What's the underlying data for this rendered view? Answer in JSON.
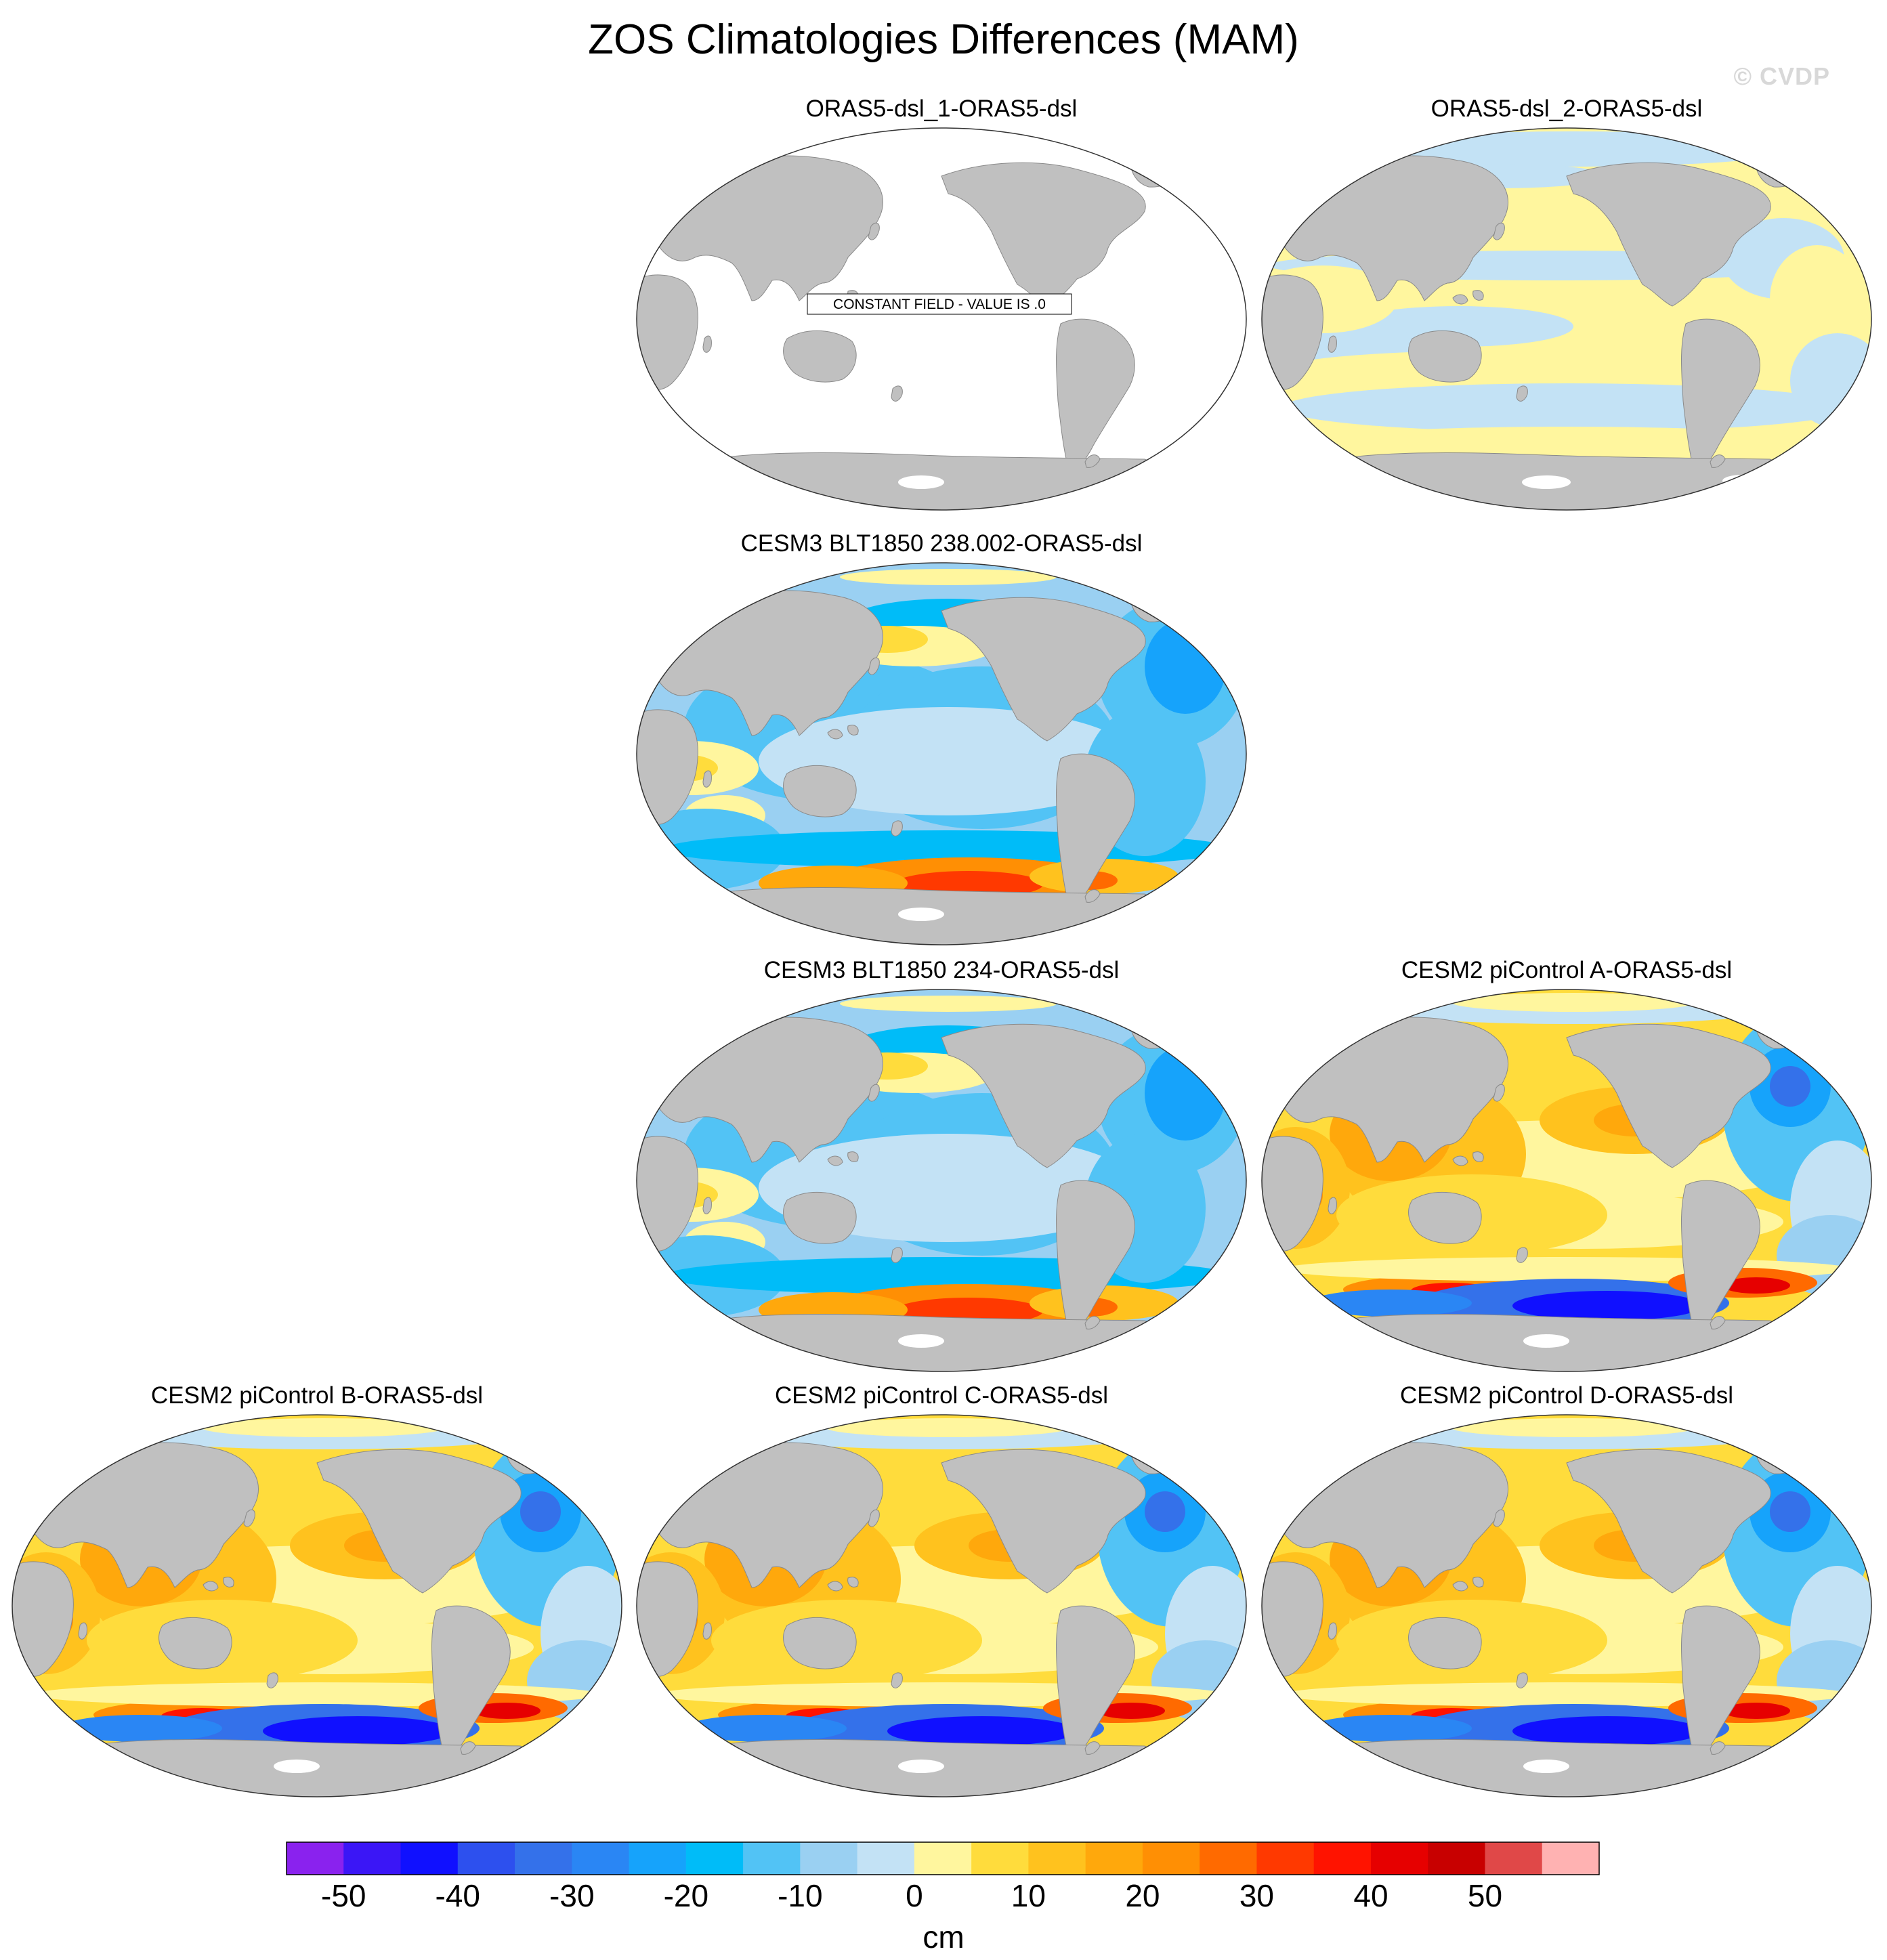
{
  "title": "ZOS Climatologies Differences (MAM)",
  "watermark": "© CVDP",
  "colorbar": {
    "unit": "cm",
    "ticks": [
      "-50",
      "-40",
      "-30",
      "-20",
      "-10",
      "0",
      "10",
      "20",
      "30",
      "40",
      "50"
    ],
    "colors": [
      "#8a22ee",
      "#3b16f6",
      "#1010ff",
      "#2d50ee",
      "#3471ea",
      "#2a86f4",
      "#16a3fb",
      "#00bcf8",
      "#52c3f5",
      "#9ad0f2",
      "#c3e2f5",
      "#fff69e",
      "#ffdc3c",
      "#ffc21e",
      "#ffa80c",
      "#ff8f04",
      "#ff6a00",
      "#ff3900",
      "#ff1300",
      "#e60000",
      "#c80000",
      "#e04848",
      "#ffb2b2"
    ]
  },
  "panels": [
    {
      "title": "ORAS5-dsl_1-ORAS5-dsl",
      "pattern": "constant",
      "note": "CONSTANT FIELD - VALUE IS .0"
    },
    {
      "title": "ORAS5-dsl_2-ORAS5-dsl",
      "pattern": "near-zero"
    },
    {
      "title": "CESM3 BLT1850 238.002-ORAS5-dsl",
      "pattern": "cesm3"
    },
    {
      "title": "CESM3 BLT1850 234-ORAS5-dsl",
      "pattern": "cesm3"
    },
    {
      "title": "CESM2 piControl A-ORAS5-dsl",
      "pattern": "cesm2"
    },
    {
      "title": "CESM2 piControl B-ORAS5-dsl",
      "pattern": "cesm2"
    },
    {
      "title": "CESM2 piControl C-ORAS5-dsl",
      "pattern": "cesm2"
    },
    {
      "title": "CESM2 piControl D-ORAS5-dsl",
      "pattern": "cesm2"
    }
  ]
}
